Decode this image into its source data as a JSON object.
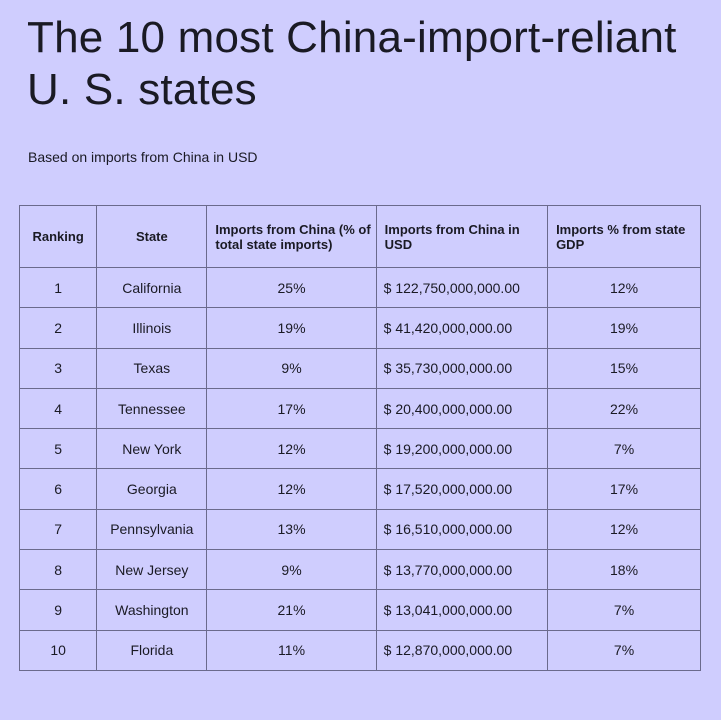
{
  "title": "The 10 most China-import-reliant U. S. states",
  "subtitle": "Based on imports from China in USD",
  "chart_data": {
    "type": "table",
    "title": "The 10 most China-import-reliant U. S. states",
    "subtitle": "Based on imports from China in USD",
    "columns": [
      "Ranking",
      "State",
      "Imports from China (% of total state imports)",
      "Imports from China in USD",
      "Imports % from state GDP"
    ],
    "rows": [
      [
        "1",
        "California",
        "25%",
        "$ 122,750,000,000.00",
        "12%"
      ],
      [
        "2",
        "Illinois",
        "19%",
        "$ 41,420,000,000.00",
        "19%"
      ],
      [
        "3",
        "Texas",
        "9%",
        "$ 35,730,000,000.00",
        "15%"
      ],
      [
        "4",
        "Tennessee",
        "17%",
        "$ 20,400,000,000.00",
        "22%"
      ],
      [
        "5",
        "New York",
        "12%",
        "$ 19,200,000,000.00",
        "7%"
      ],
      [
        "6",
        "Georgia",
        "12%",
        "$ 17,520,000,000.00",
        "17%"
      ],
      [
        "7",
        "Pennsylvania",
        "13%",
        "$ 16,510,000,000.00",
        "12%"
      ],
      [
        "8",
        "New Jersey",
        "9%",
        "$ 13,770,000,000.00",
        "18%"
      ],
      [
        "9",
        "Washington",
        "21%",
        "$ 13,041,000,000.00",
        "7%"
      ],
      [
        "10",
        "Florida",
        "11%",
        "$ 12,870,000,000.00",
        "7%"
      ]
    ]
  },
  "colors": {
    "background": "#cfcdfe",
    "border": "#6b6a8c",
    "text": "#1a1a24"
  }
}
